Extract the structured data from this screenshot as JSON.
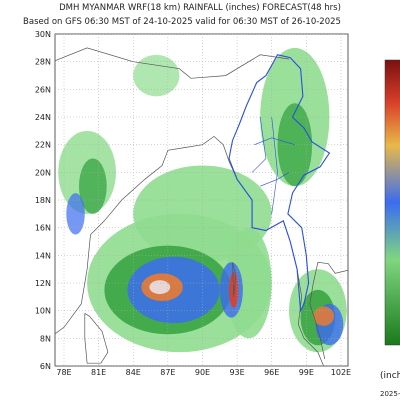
{
  "map": {
    "title": "DMH MYANMAR WRF(18 km) RAINFALL (inches) FORECAST(48 hrs)",
    "subtitle": "Based on GFS 06:30 MST of 24-10-2025 valid for 06:30 MST of 26-10-2025",
    "latitude_labels": [
      "6N",
      "8N",
      "10N",
      "12N",
      "14N",
      "16N",
      "18N",
      "20N",
      "22N",
      "24N",
      "26N",
      "28N",
      "30N"
    ],
    "longitude_labels": [
      "78E",
      "81E",
      "84E",
      "87E",
      "90E",
      "93E",
      "96E",
      "99E",
      "102E"
    ],
    "colorbar_unit": "(inches)",
    "footer": "2025-"
  }
}
